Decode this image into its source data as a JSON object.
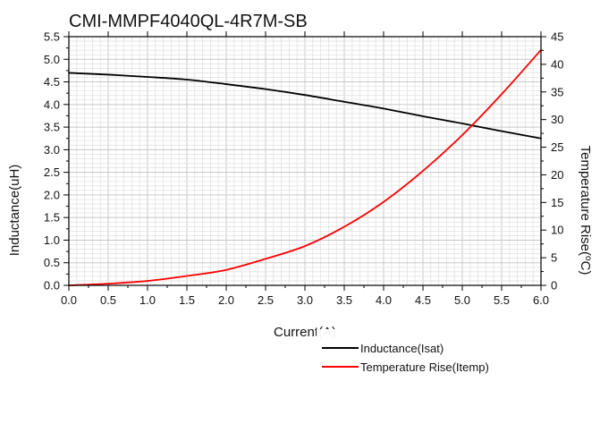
{
  "chart_data": {
    "type": "line",
    "title": "CMI-MMPF4040QL-4R7M-SB",
    "xlabel": "Current(A)",
    "ylabel_left": "Inductance(uH)",
    "ylabel_right": "Temperature Rise(",
    "ylabel_right_sup": "o",
    "ylabel_right_suffix": "C)",
    "xlim": [
      0,
      6
    ],
    "ylim_left": [
      0,
      5.5
    ],
    "ylim_right": [
      0,
      45
    ],
    "x_ticks": [
      "0.0",
      "0.5",
      "1.0",
      "1.5",
      "2.0",
      "2.5",
      "3.0",
      "3.5",
      "4.0",
      "4.5",
      "5.0",
      "5.5",
      "6.0"
    ],
    "y_left_ticks": [
      "0.0",
      "0.5",
      "1.0",
      "1.5",
      "2.0",
      "2.5",
      "3.0",
      "3.5",
      "4.0",
      "4.5",
      "5.0",
      "5.5"
    ],
    "y_right_ticks": [
      "0",
      "5",
      "10",
      "15",
      "20",
      "25",
      "30",
      "35",
      "40",
      "45"
    ],
    "grid": true,
    "legend_position": "bottom-right",
    "series": [
      {
        "name": "Inductance(Isat)",
        "axis": "left",
        "color": "#000000",
        "x": [
          0,
          0.5,
          1.0,
          1.5,
          2.0,
          2.5,
          3.0,
          3.5,
          4.0,
          4.5,
          5.0,
          5.5,
          6.0
        ],
        "y": [
          4.7,
          4.66,
          4.61,
          4.55,
          4.45,
          4.34,
          4.21,
          4.06,
          3.91,
          3.74,
          3.58,
          3.41,
          3.25
        ]
      },
      {
        "name": "Temperature Rise(Itemp)",
        "axis": "right",
        "color": "#ff0000",
        "x": [
          0,
          0.5,
          1.0,
          1.5,
          2.0,
          2.5,
          3.0,
          3.5,
          4.0,
          4.5,
          5.0,
          5.5,
          6.0
        ],
        "y": [
          0.0,
          0.3,
          0.8,
          1.7,
          2.8,
          4.8,
          7.1,
          10.6,
          15.1,
          20.7,
          27.2,
          34.6,
          42.6
        ]
      }
    ]
  }
}
